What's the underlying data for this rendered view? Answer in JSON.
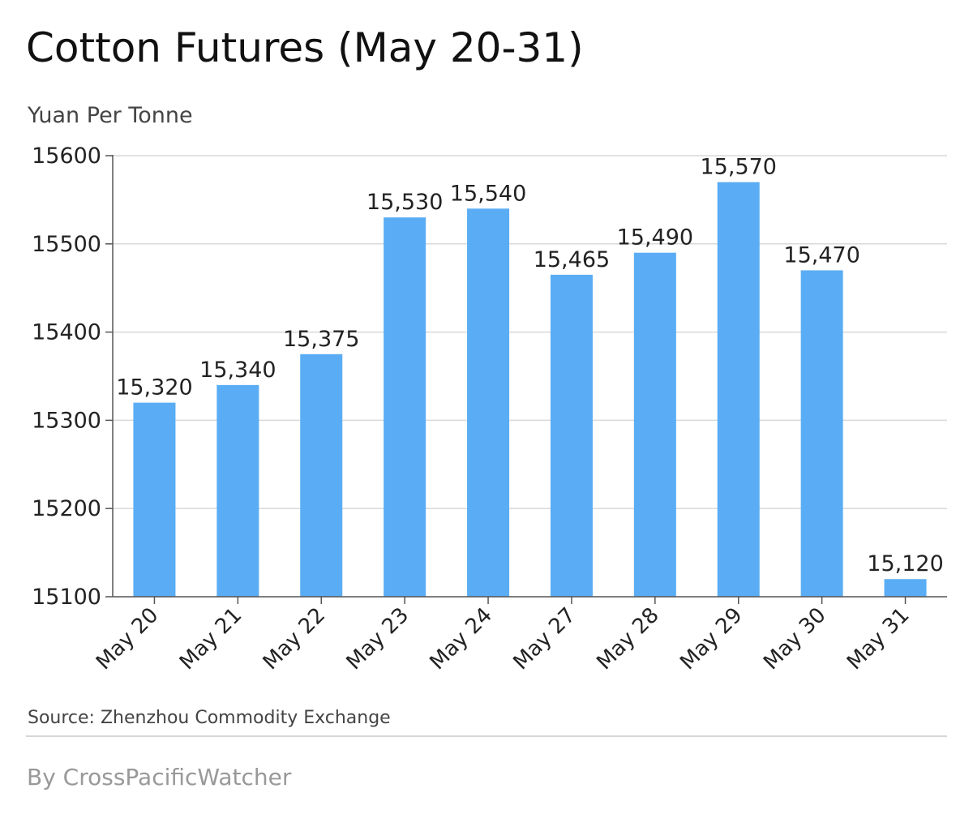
{
  "header": {
    "title": "Cotton Futures (May 20-31)",
    "subtitle": "Yuan Per Tonne"
  },
  "footer": {
    "source": "Source: Zhenzhou Commodity Exchange",
    "byline": "By CrossPacificWatcher"
  },
  "colors": {
    "bar": "#5aadf4",
    "grid": "#d9d9d9",
    "axis": "#555555",
    "text": "#222222"
  },
  "chart_data": {
    "type": "bar",
    "title": "Cotton Futures (May 20-31)",
    "ylabel": "Yuan Per Tonne",
    "xlabel": "",
    "categories": [
      "May 20",
      "May 21",
      "May 22",
      "May 23",
      "May 24",
      "May 27",
      "May 28",
      "May 29",
      "May 30",
      "May 31"
    ],
    "values": [
      15320,
      15340,
      15375,
      15530,
      15540,
      15465,
      15490,
      15570,
      15470,
      15120
    ],
    "data_labels": [
      "15,320",
      "15,340",
      "15,375",
      "15,530",
      "15,540",
      "15,465",
      "15,490",
      "15,570",
      "15,470",
      "15,120"
    ],
    "ylim": [
      15100,
      15600
    ],
    "yticks": [
      15100,
      15200,
      15300,
      15400,
      15500,
      15600
    ],
    "ytick_labels": [
      "15100",
      "15200",
      "15300",
      "15400",
      "15500",
      "15600"
    ],
    "grid": true,
    "legend": "none"
  }
}
